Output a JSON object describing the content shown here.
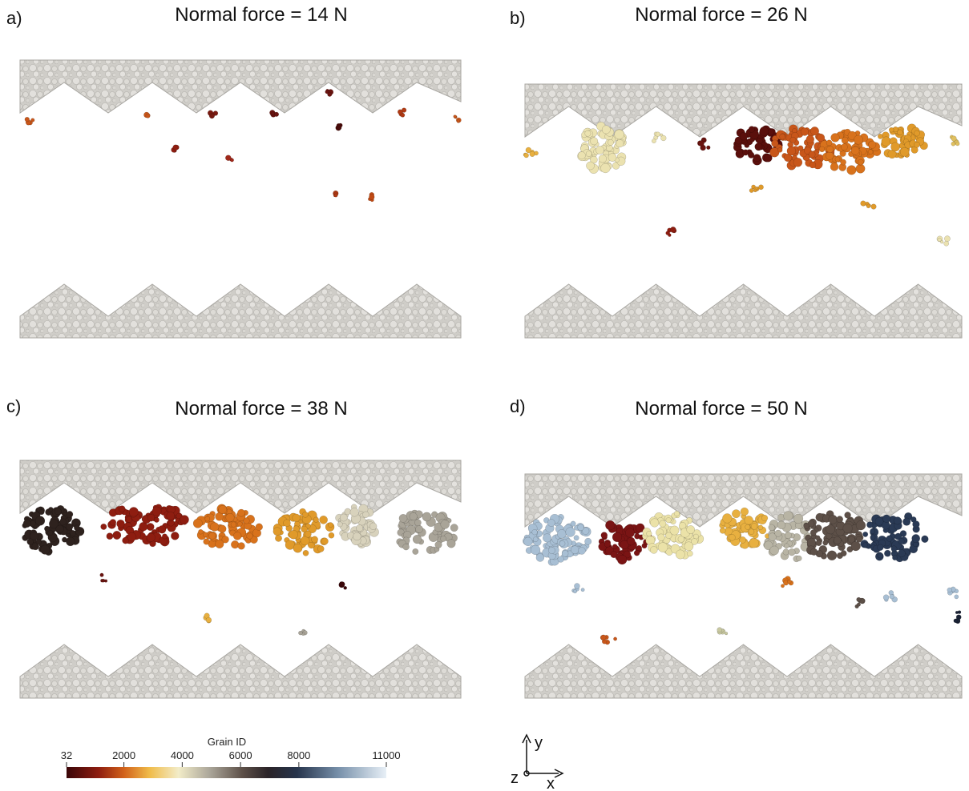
{
  "panels": [
    {
      "label": "a)",
      "title": "Normal force = 14 N"
    },
    {
      "label": "b)",
      "title": "Normal force = 26 N"
    },
    {
      "label": "c)",
      "title": "Normal force = 38 N"
    },
    {
      "label": "d)",
      "title": "Normal force = 50 N"
    }
  ],
  "colorbar": {
    "title": "Grain ID",
    "lim": [
      32,
      11000
    ],
    "ticks": [
      32,
      2000,
      4000,
      6000,
      8000,
      11000
    ]
  },
  "axes": {
    "y": "y",
    "x": "x",
    "z": "z"
  }
}
